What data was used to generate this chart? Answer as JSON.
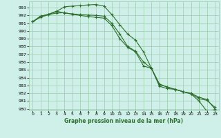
{
  "title": "Graphe pression niveau de la mer (hPa)",
  "background_color": "#cff0e8",
  "grid_color": "#99ccaa",
  "line_color": "#2d6e2d",
  "xlim": [
    -0.5,
    23.5
  ],
  "ylim": [
    979.8,
    993.8
  ],
  "yticks": [
    980,
    981,
    982,
    983,
    984,
    985,
    986,
    987,
    988,
    989,
    990,
    991,
    992,
    993
  ],
  "xticks": [
    0,
    1,
    2,
    3,
    4,
    5,
    6,
    7,
    8,
    9,
    10,
    11,
    12,
    13,
    14,
    15,
    16,
    17,
    18,
    19,
    20,
    21,
    22,
    23
  ],
  "series1": {
    "x": [
      0,
      1,
      2,
      3,
      4,
      5,
      6,
      7,
      8,
      9,
      10,
      11,
      12,
      13,
      14,
      15,
      16,
      17,
      18,
      19,
      20,
      21,
      22,
      23
    ],
    "y": [
      991.2,
      991.9,
      992.1,
      992.5,
      993.1,
      993.2,
      993.25,
      993.35,
      993.4,
      993.2,
      992.1,
      990.8,
      989.6,
      988.8,
      987.3,
      985.2,
      982.9,
      982.6,
      982.5,
      982.2,
      981.9,
      981.0,
      979.7,
      979.8
    ]
  },
  "series2": {
    "x": [
      0,
      1,
      2,
      3,
      4,
      5,
      6,
      7,
      8,
      9,
      10,
      11,
      12,
      13,
      14,
      15,
      16,
      17,
      18,
      19,
      20,
      21,
      22,
      23
    ],
    "y": [
      991.2,
      991.9,
      992.15,
      992.55,
      992.3,
      992.2,
      992.1,
      992.05,
      992.0,
      991.9,
      991.0,
      989.6,
      988.0,
      987.4,
      986.0,
      985.2,
      983.2,
      982.8,
      982.5,
      982.2,
      982.0,
      981.5,
      981.2,
      980.0
    ]
  },
  "series3": {
    "x": [
      0,
      1,
      2,
      3,
      4,
      5,
      6,
      7,
      8,
      9,
      10,
      11,
      12,
      13,
      14,
      15,
      16,
      17,
      18,
      19,
      20,
      21,
      22,
      23
    ],
    "y": [
      991.2,
      991.75,
      992.1,
      992.3,
      992.35,
      992.15,
      992.0,
      991.85,
      991.75,
      991.65,
      990.7,
      989.0,
      987.9,
      987.3,
      985.5,
      985.2,
      983.1,
      982.8,
      982.5,
      982.2,
      981.95,
      981.3,
      981.1,
      980.2
    ]
  }
}
